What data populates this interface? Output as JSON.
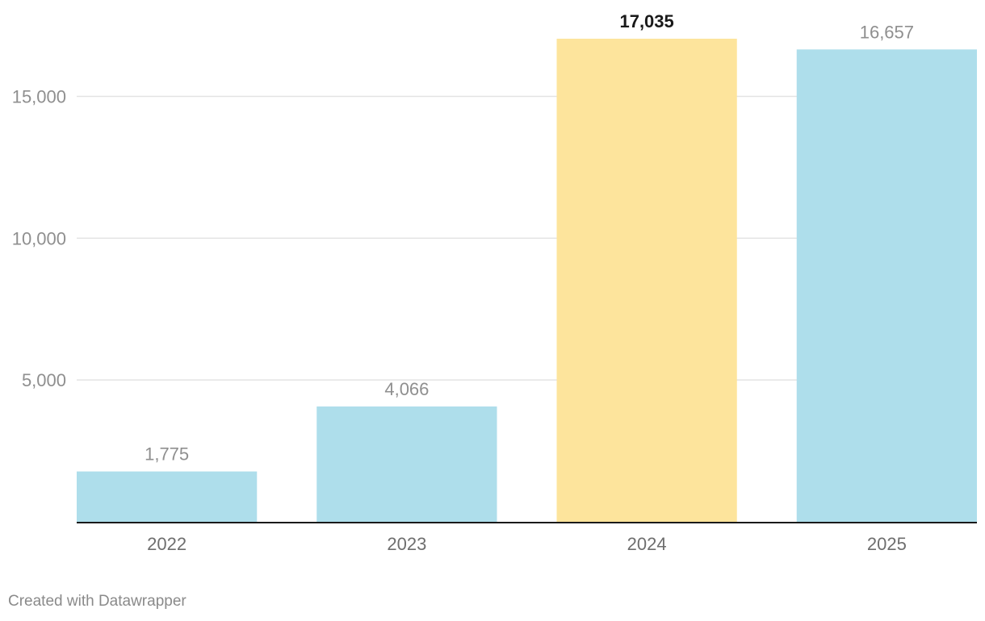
{
  "chart_data": {
    "type": "bar",
    "categories": [
      "2022",
      "2023",
      "2024",
      "2025"
    ],
    "values": [
      1775,
      4066,
      17035,
      16657
    ],
    "value_labels": [
      "1,775",
      "4,066",
      "17,035",
      "16,657"
    ],
    "highlight": "2024",
    "bar_color": "#aedeeb",
    "highlight_color": "#fde49c",
    "yticks": [
      5000,
      10000,
      15000
    ],
    "ytick_labels": [
      "5,000",
      "10,000",
      "15,000"
    ],
    "ylim": [
      0,
      17035
    ],
    "grid": true,
    "legend": "none"
  },
  "footer": {
    "credit": "Created with Datawrapper"
  }
}
